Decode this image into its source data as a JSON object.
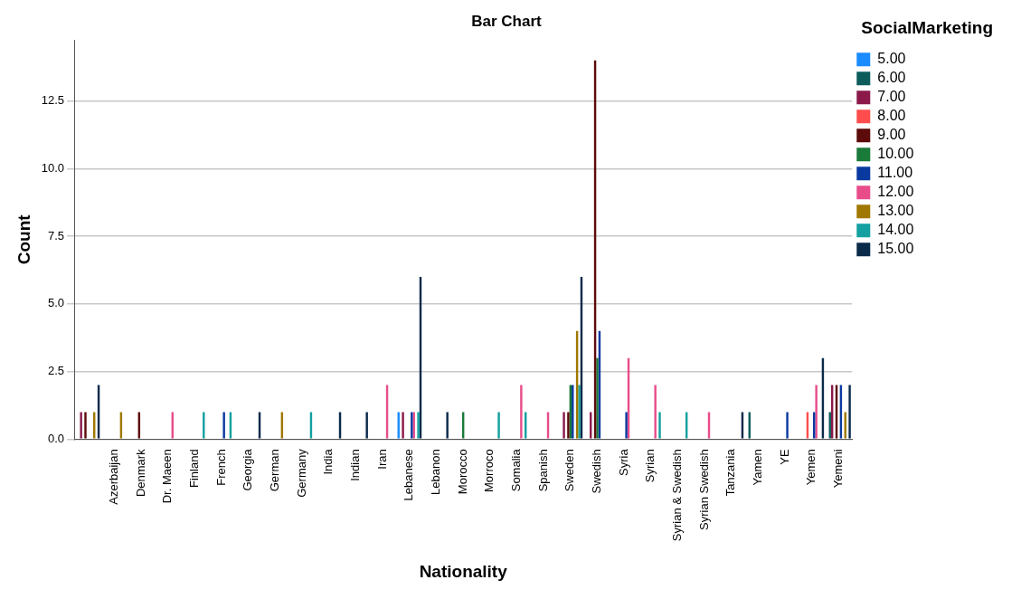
{
  "chart_data": {
    "type": "bar",
    "title": "Bar Chart",
    "xlabel": "Nationality",
    "ylabel": "Count",
    "legend_title": "SocialMarketing",
    "legend": "top right",
    "grid": "y",
    "categories": [
      null,
      "Azerbaijan",
      "Denmark",
      "Dr. Maeen",
      "Finland",
      "French",
      "Georgia",
      "German",
      "Germany",
      "India",
      "Indian",
      "Iran",
      "Lebanese",
      "Lebanon",
      "Morocco",
      "Morroco",
      "Somalia",
      "Spanish",
      "Sweden",
      "Swedish",
      "Syria",
      "Syrian",
      "Syrian & Swedish",
      "Syrian Swedish",
      "Tanzania",
      "Yamen",
      "YE",
      "Yemen",
      "Yemeni"
    ],
    "ylim": [
      0,
      14.75
    ],
    "yticks": [
      {
        "value": 0,
        "label": "0.0"
      },
      {
        "value": 2.5,
        "label": "2.5"
      },
      {
        "value": 5,
        "label": "5.0"
      },
      {
        "value": 7.5,
        "label": "7.5"
      },
      {
        "value": 10,
        "label": "10.0"
      },
      {
        "value": 12.5,
        "label": "12.5"
      }
    ],
    "series": [
      {
        "name": "5.00",
        "color": "#1a8cff",
        "values": [
          null,
          null,
          null,
          null,
          null,
          null,
          null,
          null,
          null,
          null,
          null,
          null,
          1,
          null,
          null,
          null,
          null,
          null,
          null,
          null,
          null,
          null,
          null,
          null,
          null,
          null,
          null,
          null,
          null
        ]
      },
      {
        "name": "6.00",
        "color": "#0d5c5c",
        "values": [
          null,
          null,
          null,
          null,
          null,
          null,
          null,
          null,
          null,
          null,
          null,
          null,
          null,
          null,
          null,
          null,
          null,
          null,
          null,
          null,
          null,
          null,
          null,
          null,
          null,
          1,
          null,
          null,
          1
        ]
      },
      {
        "name": "7.00",
        "color": "#8b1a4a",
        "values": [
          1,
          null,
          null,
          null,
          null,
          null,
          null,
          null,
          null,
          null,
          null,
          null,
          1,
          null,
          null,
          null,
          null,
          null,
          1,
          1,
          null,
          null,
          null,
          null,
          null,
          null,
          null,
          null,
          2
        ]
      },
      {
        "name": "8.00",
        "color": "#ff4d4d",
        "values": [
          null,
          null,
          null,
          null,
          null,
          null,
          null,
          null,
          null,
          null,
          null,
          null,
          null,
          null,
          null,
          null,
          null,
          null,
          null,
          null,
          null,
          null,
          null,
          null,
          null,
          null,
          null,
          1,
          null
        ]
      },
      {
        "name": "9.00",
        "color": "#5c0a0a",
        "values": [
          1,
          null,
          1,
          null,
          null,
          null,
          null,
          null,
          null,
          null,
          null,
          null,
          null,
          null,
          null,
          null,
          null,
          null,
          1,
          14,
          null,
          null,
          null,
          null,
          null,
          null,
          null,
          null,
          2
        ]
      },
      {
        "name": "10.00",
        "color": "#1a7a3a",
        "values": [
          null,
          null,
          null,
          null,
          null,
          null,
          null,
          null,
          null,
          null,
          null,
          null,
          null,
          null,
          1,
          null,
          null,
          null,
          2,
          3,
          null,
          null,
          null,
          null,
          null,
          null,
          null,
          null,
          null
        ]
      },
      {
        "name": "11.00",
        "color": "#0a3aa0",
        "values": [
          null,
          null,
          null,
          null,
          null,
          1,
          null,
          null,
          null,
          null,
          null,
          null,
          1,
          null,
          null,
          null,
          null,
          null,
          2,
          4,
          1,
          null,
          null,
          null,
          null,
          null,
          1,
          1,
          2
        ]
      },
      {
        "name": "12.00",
        "color": "#e84d8a",
        "values": [
          null,
          null,
          null,
          1,
          null,
          null,
          null,
          null,
          null,
          null,
          null,
          2,
          1,
          null,
          null,
          null,
          2,
          1,
          null,
          null,
          3,
          2,
          null,
          1,
          null,
          null,
          null,
          2,
          null
        ]
      },
      {
        "name": "13.00",
        "color": "#a07800",
        "values": [
          1,
          1,
          null,
          null,
          null,
          null,
          null,
          1,
          null,
          null,
          null,
          null,
          null,
          null,
          null,
          null,
          null,
          null,
          4,
          null,
          null,
          null,
          null,
          null,
          null,
          null,
          null,
          null,
          1
        ]
      },
      {
        "name": "14.00",
        "color": "#14a0a0",
        "values": [
          null,
          null,
          null,
          null,
          1,
          1,
          null,
          null,
          1,
          null,
          null,
          null,
          1,
          null,
          null,
          1,
          1,
          null,
          2,
          null,
          null,
          1,
          1,
          null,
          null,
          null,
          null,
          null,
          null
        ]
      },
      {
        "name": "15.00",
        "color": "#0a2a4a",
        "values": [
          2,
          null,
          null,
          null,
          null,
          null,
          1,
          null,
          null,
          1,
          1,
          null,
          6,
          1,
          null,
          null,
          null,
          null,
          6,
          null,
          null,
          null,
          null,
          null,
          1,
          null,
          null,
          3,
          2
        ]
      }
    ]
  }
}
